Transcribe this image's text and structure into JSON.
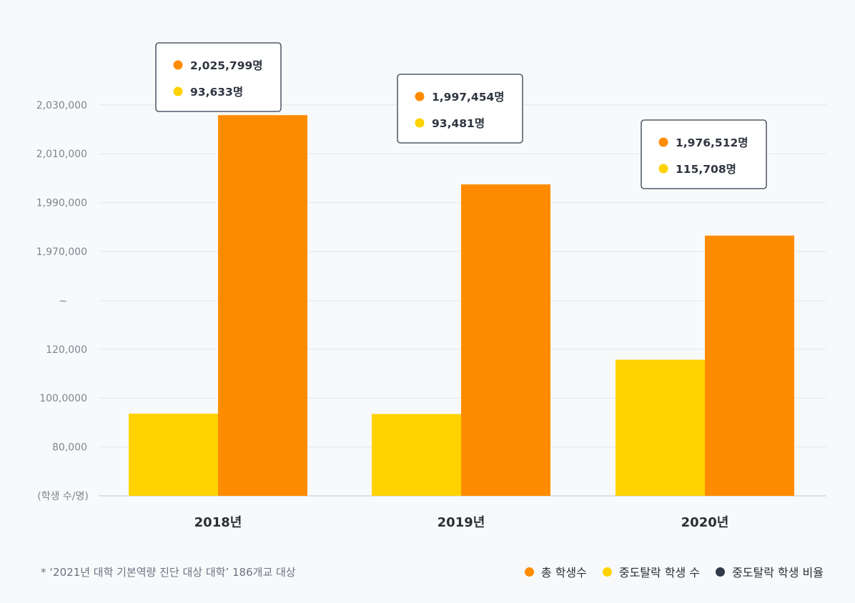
{
  "chart_data": {
    "type": "bar",
    "categories": [
      "2018년",
      "2019년",
      "2020년"
    ],
    "series": [
      {
        "name": "중도탈락 학생 수",
        "color": "#ffd200",
        "values": [
          93633,
          93481,
          115708
        ]
      },
      {
        "name": "총 학생수",
        "color": "#ff8c00",
        "values": [
          2025799,
          1997454,
          1976512
        ]
      }
    ],
    "ylabel": "(학생 수/명)",
    "y_axis_break": "~",
    "ylim_lower": [
      60000,
      140000
    ],
    "ylim_upper": [
      1950000,
      2030000
    ],
    "y_ticks_lower": [
      "80,000",
      "100,0000",
      "120,000"
    ],
    "y_ticks_upper": [
      "1,970,000",
      "1,990,000",
      "2,010,000",
      "2,030,000"
    ],
    "grid": true,
    "tooltips": [
      {
        "total": "2,025,799명",
        "dropout": "93,633명"
      },
      {
        "total": "1,997,454명",
        "dropout": "93,481명"
      },
      {
        "total": "1,976,512명",
        "dropout": "115,708명"
      }
    ]
  },
  "footnote": "* ‘2021년 대학 기본역량 진단 대상 대학’ 186개교 대상",
  "legend": [
    {
      "label": "총 학생수",
      "color": "#ff8c00"
    },
    {
      "label": "중도탈락 학생 수",
      "color": "#ffd200"
    },
    {
      "label": "중도탈락 학생 비율",
      "color": "#2f3a4a"
    }
  ]
}
